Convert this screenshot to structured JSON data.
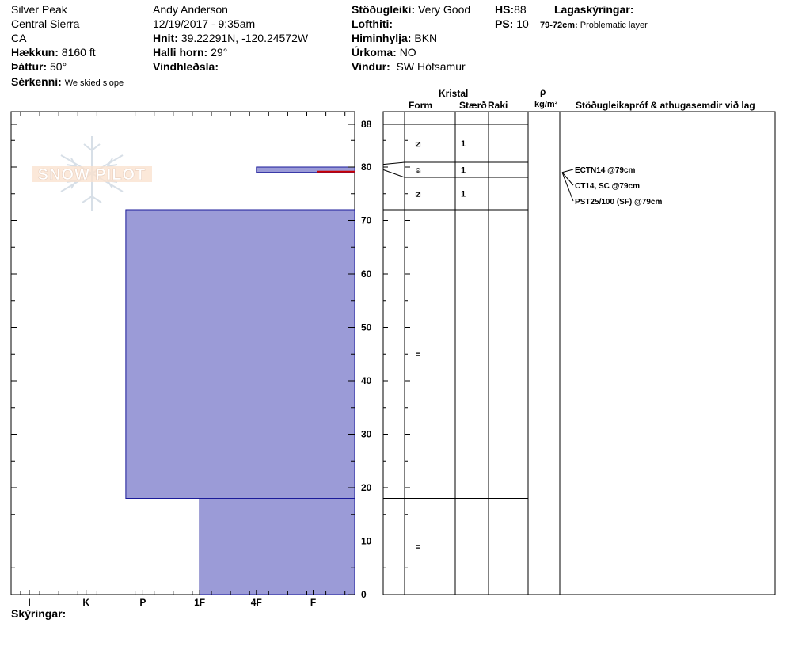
{
  "header": {
    "location": "Silver Peak",
    "range": "Central Sierra",
    "state": "CA",
    "elevation_label": "Hækkun:",
    "elevation": "8160 ft",
    "aspect_label": "Þáttur:",
    "aspect": "50°",
    "comments_label": "Sérkenni:",
    "comments": "We skied slope",
    "observer": "Andy Anderson",
    "datetime": "12/19/2017 - 9:35am",
    "coords_label": "Hnit:",
    "coords": "39.22291N, -120.24572W",
    "slope_label": "Halli horn:",
    "slope": "29°",
    "wind_loading_label": "Vindhleðsla:",
    "wind_loading": "",
    "stability_label": "Stöðugleiki:",
    "stability": "Very Good",
    "air_temp_label": "Lofthiti:",
    "air_temp": "",
    "sky_label": "Himinhylja:",
    "sky": "BKN",
    "precip_label": "Úrkoma:",
    "precip": "NO",
    "wind_label": "Vindur:",
    "wind": "SW Hófsamur",
    "hs_label": "HS:",
    "hs": "88",
    "ps_label": "PS:",
    "ps": "10",
    "layer_notes_label": "Lagaskýringar:",
    "layer_note_range": "79-72cm:",
    "layer_note_text": "Problematic layer"
  },
  "footer": {
    "notes_label": "Skýringar:"
  },
  "logo": {
    "text": "SNOW PILOT"
  },
  "columns": {
    "crystal": "Kristal",
    "form": "Form",
    "size": "Stærð",
    "moisture": "Raki",
    "density_symbol": "ρ",
    "density_unit": "kg/m³",
    "tests": "Stöðugleikapróf & athugasemdir við lag"
  },
  "chart_data": {
    "type": "snow-profile",
    "x_hardness_ticks": [
      "I",
      "K",
      "P",
      "1F",
      "4F",
      "F"
    ],
    "y_ticks": [
      0,
      10,
      20,
      30,
      40,
      50,
      60,
      70,
      80,
      88
    ],
    "ylim": [
      0,
      88
    ],
    "layers": [
      {
        "top": 88,
        "bottom": 79,
        "hardness": 6.7,
        "form": "⧄",
        "size": "1"
      },
      {
        "top": 79,
        "bottom": 78.8,
        "hardness": 6.7,
        "form": "⍝",
        "size": "1"
      },
      {
        "top": 80,
        "bottom": 79,
        "hardness": 4.0,
        "form": "",
        "size": ""
      },
      {
        "top": 79,
        "bottom": 72,
        "hardness": 6.7,
        "form": "⧄",
        "size": "1"
      },
      {
        "top": 72,
        "bottom": 18,
        "hardness": 1.7,
        "form": "=",
        "size": ""
      },
      {
        "top": 18,
        "bottom": 0,
        "hardness": 3.0,
        "form": "=",
        "size": ""
      }
    ],
    "crystal_rows": [
      {
        "top": 88,
        "bottom": 81,
        "form": "⧄",
        "size": "1"
      },
      {
        "top": 81,
        "bottom": 78,
        "form": "⍝",
        "size": "1"
      },
      {
        "top": 78,
        "bottom": 72,
        "form": "⧄",
        "size": "1"
      },
      {
        "top": 72,
        "bottom": 18,
        "form": "=",
        "size": ""
      },
      {
        "top": 18,
        "bottom": 0,
        "form": "=",
        "size": ""
      }
    ],
    "problem_layer_depth": 79,
    "tests": [
      "ECTN14 @79cm",
      "CT14, SC @79cm",
      "PST25/100 (SF) @79cm"
    ],
    "colors": {
      "fill": "#9b9bd7",
      "stroke": "#1a1a99",
      "problem": "#cc0000"
    }
  }
}
